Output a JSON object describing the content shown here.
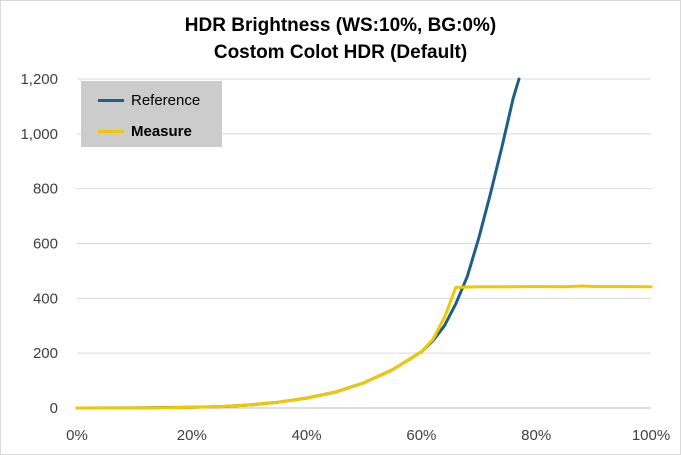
{
  "chart_data": {
    "type": "line",
    "title": "HDR Brightness (WS:10%, BG:0%)",
    "subtitle": "Costom Colot HDR (Default)",
    "xlabel": "",
    "ylabel": "",
    "xlim": [
      0,
      100
    ],
    "ylim": [
      0,
      1200
    ],
    "x_ticks": [
      "0%",
      "20%",
      "40%",
      "60%",
      "80%",
      "100%"
    ],
    "y_ticks": [
      "0",
      "200",
      "400",
      "600",
      "800",
      "1,000",
      "1,200"
    ],
    "grid": "horizontal",
    "legend_position": "top-left",
    "series": [
      {
        "name": "Reference",
        "color": "#1f5f85",
        "x": [
          0,
          10,
          20,
          25,
          30,
          35,
          40,
          45,
          50,
          55,
          60,
          62,
          64,
          66,
          68,
          70,
          72,
          74,
          76,
          77
        ],
        "y": [
          0,
          0.3,
          2.4,
          5,
          10.8,
          21,
          36,
          58,
          92,
          140,
          205,
          245,
          300,
          380,
          480,
          620,
          780,
          950,
          1130,
          1200
        ]
      },
      {
        "name": "Measure",
        "color": "#f0c800",
        "x": [
          0,
          10,
          15,
          20,
          25,
          30,
          35,
          40,
          45,
          50,
          55,
          60,
          62,
          64,
          66,
          70,
          75,
          80,
          85,
          88,
          90,
          95,
          100
        ],
        "y": [
          0,
          0,
          1,
          3,
          5,
          10.8,
          21,
          36,
          58,
          92,
          140,
          205,
          250,
          330,
          440,
          442,
          442,
          443,
          442,
          445,
          443,
          443,
          442
        ]
      }
    ]
  }
}
